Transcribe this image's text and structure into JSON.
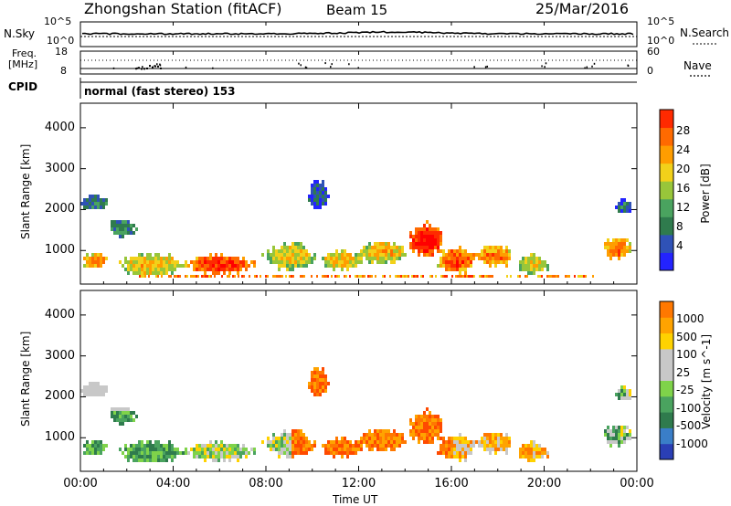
{
  "header": {
    "station": "Zhongshan Station (fitACF)",
    "beam": "Beam 15",
    "date": "25/Mar/2016"
  },
  "top_panels": {
    "nsky_label": "N.Sky",
    "nsky_ticks": [
      "10^5",
      "10^0"
    ],
    "nsearch_label": "N.Search",
    "nsearch_ticks": [
      "10^5",
      "10^0"
    ],
    "freq_label_1": "Freq.",
    "freq_label_2": "[MHz]",
    "freq_ticks": [
      "18",
      "8"
    ],
    "nave_label": "Nave",
    "nave_ticks": [
      "60",
      "0"
    ],
    "cpid_label": "CPID",
    "cpid_text": "normal (fast stereo) 153"
  },
  "chart_data": [
    {
      "type": "heatmap",
      "name": "power",
      "ylabel": "Slant Range [km]",
      "ylim": [
        180,
        4600
      ],
      "yticks": [
        "4000",
        "3000",
        "2000",
        "1000"
      ],
      "colorbar_label": "Power [dB]",
      "colorbar_ticks": [
        "28",
        "24",
        "20",
        "16",
        "12",
        "8",
        "4"
      ],
      "colors": [
        "#2323ff",
        "#2f52b7",
        "#2f7b4d",
        "#4aa35f",
        "#98c63a",
        "#f2d11a",
        "#ff9d00",
        "#ff6a00",
        "#ff2a00",
        "#ff0000"
      ],
      "blobs": [
        {
          "t": 0.6,
          "r": 800,
          "dt": 0.6,
          "dr": 220,
          "v": 0.7
        },
        {
          "t": 0.5,
          "r": 2200,
          "dt": 0.7,
          "dr": 200,
          "v": 0.25
        },
        {
          "t": 1.8,
          "r": 1600,
          "dt": 0.6,
          "dr": 250,
          "v": 0.3
        },
        {
          "t": 3.0,
          "r": 700,
          "dt": 1.5,
          "dr": 300,
          "v": 0.6
        },
        {
          "t": 6.0,
          "r": 700,
          "dt": 1.6,
          "dr": 260,
          "v": 0.85
        },
        {
          "t": 9.0,
          "r": 900,
          "dt": 1.2,
          "dr": 350,
          "v": 0.55
        },
        {
          "t": 10.2,
          "r": 2400,
          "dt": 0.5,
          "dr": 400,
          "v": 0.15
        },
        {
          "t": 11.2,
          "r": 800,
          "dt": 1.0,
          "dr": 250,
          "v": 0.6
        },
        {
          "t": 13.0,
          "r": 1000,
          "dt": 1.2,
          "dr": 300,
          "v": 0.6
        },
        {
          "t": 14.9,
          "r": 1300,
          "dt": 0.8,
          "dr": 450,
          "v": 0.95
        },
        {
          "t": 16.2,
          "r": 800,
          "dt": 0.9,
          "dr": 350,
          "v": 0.8
        },
        {
          "t": 17.8,
          "r": 900,
          "dt": 0.9,
          "dr": 300,
          "v": 0.7
        },
        {
          "t": 19.5,
          "r": 700,
          "dt": 0.8,
          "dr": 250,
          "v": 0.55
        },
        {
          "t": 23.1,
          "r": 1100,
          "dt": 0.6,
          "dr": 300,
          "v": 0.75
        },
        {
          "t": 23.4,
          "r": 2100,
          "dt": 0.4,
          "dr": 200,
          "v": 0.2
        }
      ]
    },
    {
      "type": "heatmap",
      "name": "velocity",
      "ylabel": "Slant Range [km]",
      "xlabel": "Time UT",
      "ylim": [
        180,
        4600
      ],
      "xlim": [
        0,
        24
      ],
      "xticks": [
        "00:00",
        "04:00",
        "08:00",
        "12:00",
        "16:00",
        "20:00",
        "00:00"
      ],
      "yticks": [
        "4000",
        "3000",
        "2000",
        "1000"
      ],
      "colorbar_label": "Velocity [m s^-1]",
      "colorbar_ticks": [
        "1000",
        "500",
        "100",
        "25",
        "-25",
        "-100",
        "-500",
        "-1000"
      ],
      "colors": [
        "#2a3fb5",
        "#3a7ec8",
        "#2f7b4d",
        "#4aa35f",
        "#7fd34a",
        "#c8c8c8",
        "#c8c8c8",
        "#ffd200",
        "#ffa300",
        "#ff7800",
        "#ff4a00",
        "#ff0000"
      ]
    }
  ]
}
